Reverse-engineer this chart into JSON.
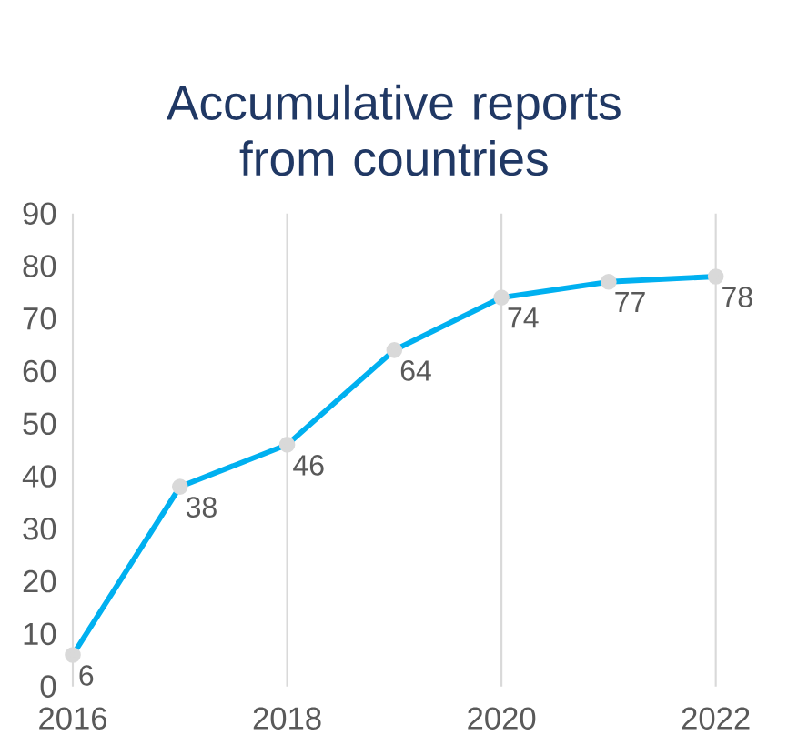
{
  "chart_data": {
    "type": "line",
    "title": "Accumulative reports from countries",
    "x": [
      2016,
      2017,
      2018,
      2019,
      2020,
      2021,
      2022
    ],
    "series": [
      {
        "color": "#00b0f0",
        "values": [
          6,
          38,
          46,
          64,
          74,
          77,
          78
        ]
      }
    ],
    "xlim": [
      2016,
      2022
    ],
    "xticks": [
      2016,
      2018,
      2020,
      2022
    ],
    "ylim": [
      0,
      90
    ],
    "yticks": [
      0,
      10,
      20,
      30,
      40,
      50,
      60,
      70,
      80,
      90
    ],
    "grid": "x",
    "marker": "circle",
    "data_labels": true
  }
}
